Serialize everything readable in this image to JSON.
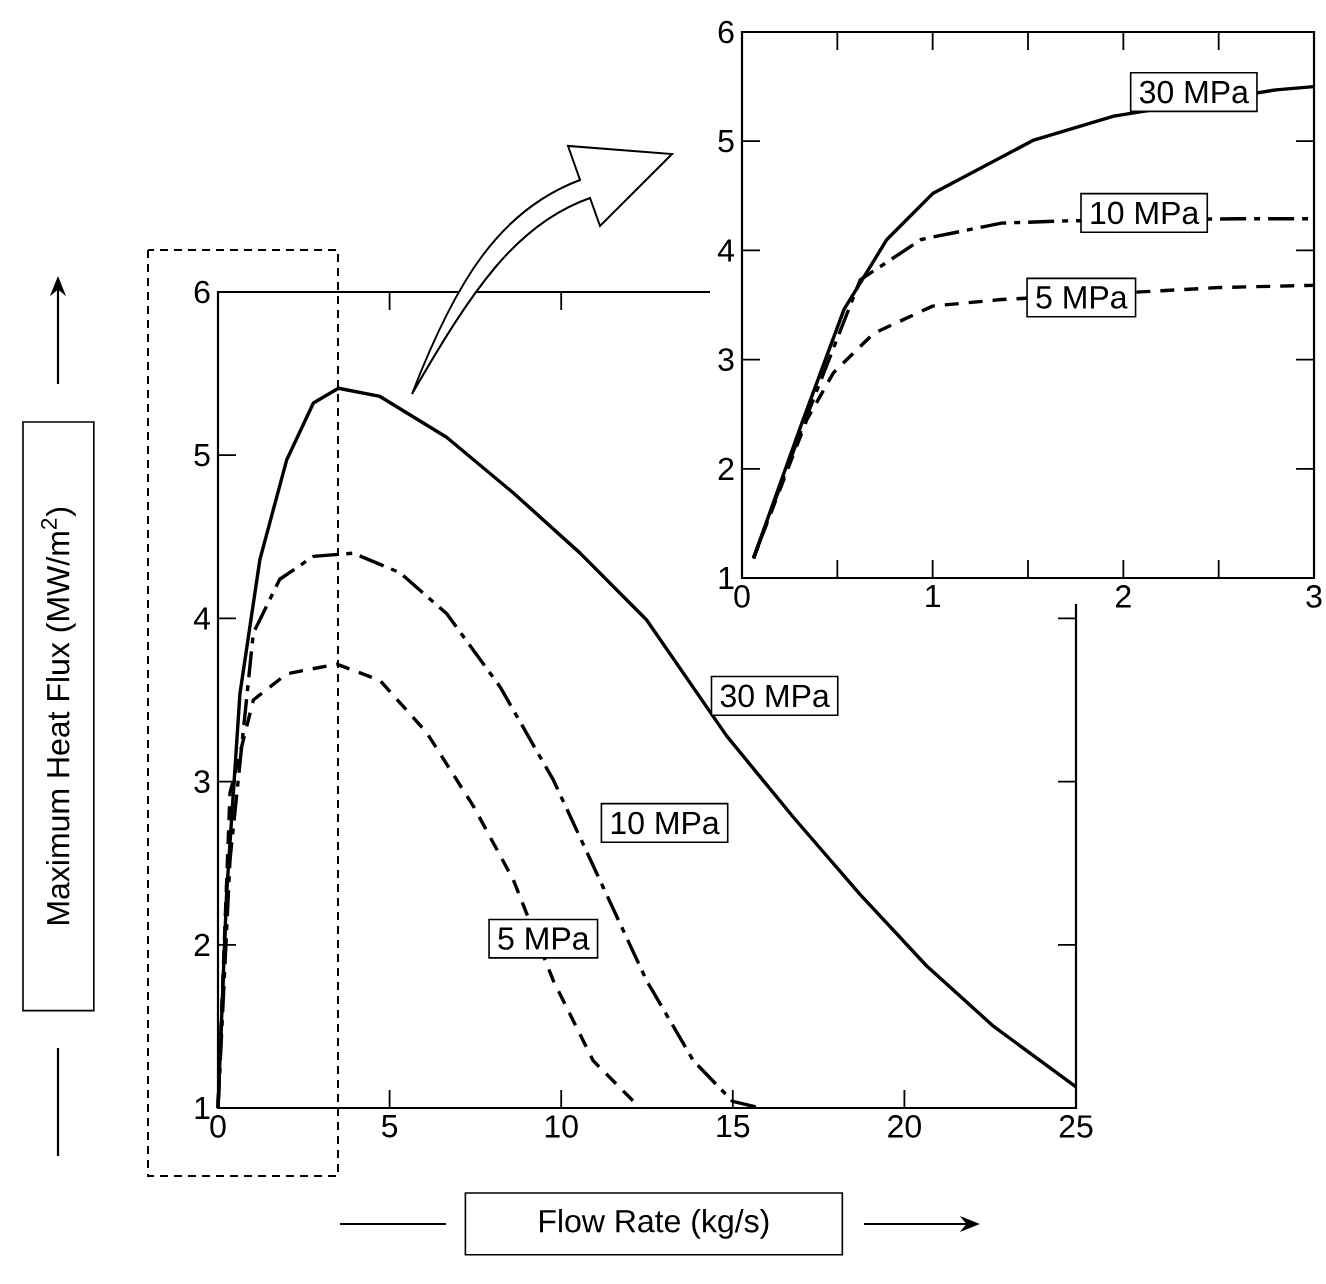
{
  "chart_data": [
    {
      "type": "line",
      "xlabel": "Flow Rate (kg/s)",
      "ylabel": "Maximum Heat Flux (MW/m$^{2}$)",
      "xlim": [
        0,
        25
      ],
      "ylim": [
        1,
        6
      ],
      "xticks": [
        0,
        5,
        10,
        15,
        20,
        25
      ],
      "yticks": [
        1,
        2,
        3,
        4,
        5,
        6
      ],
      "marker": "none",
      "series": [
        {
          "name": "30 MPa",
          "color": "#000000",
          "line_style": "solid",
          "x": [
            0,
            0.25,
            0.64,
            1.22,
            2.0,
            2.78,
            3.51,
            4.72,
            6.66,
            8.6,
            10.55,
            12.49,
            14.82,
            16.77,
            18.7,
            20.65,
            22.6,
            25.0
          ],
          "values": [
            1.0,
            2.31,
            3.54,
            4.36,
            4.97,
            5.32,
            5.41,
            5.36,
            5.11,
            4.77,
            4.4,
            3.99,
            3.28,
            2.78,
            2.31,
            1.87,
            1.5,
            1.13
          ]
        },
        {
          "name": "10 MPa",
          "color": "#000000",
          "line_style": "dashdot",
          "x": [
            0,
            0.35,
            1.03,
            1.8,
            2.78,
            3.94,
            5.3,
            6.66,
            8.22,
            9.77,
            11.03,
            12.49,
            13.85,
            15.0,
            15.8
          ],
          "values": [
            1.0,
            2.52,
            3.91,
            4.24,
            4.38,
            4.4,
            4.28,
            4.03,
            3.58,
            3.01,
            2.44,
            1.78,
            1.29,
            1.04,
            1.0
          ]
        },
        {
          "name": "5 MPa",
          "color": "#000000",
          "line_style": "dashed",
          "x": [
            0,
            0.35,
            1.03,
            2.0,
            3.46,
            4.72,
            6.08,
            7.44,
            8.6,
            9.77,
            10.93,
            12.3
          ],
          "values": [
            1.0,
            2.93,
            3.5,
            3.66,
            3.72,
            3.62,
            3.3,
            2.85,
            2.4,
            1.78,
            1.29,
            1.0
          ]
        }
      ]
    },
    {
      "type": "line",
      "xlim": [
        0,
        3
      ],
      "ylim": [
        1,
        6
      ],
      "xticks": [
        0,
        {
          "value": 0.5,
          "label": null
        },
        1,
        {
          "value": 1.5,
          "label": null
        },
        2,
        {
          "value": 2.5,
          "label": null
        },
        3
      ],
      "yticks": [
        1,
        2,
        3,
        4,
        5,
        6
      ],
      "marker": "none",
      "series": [
        {
          "name": "30 MPa",
          "color": "#000000",
          "line_style": "solid",
          "x": [
            0.06,
            0.31,
            0.535,
            0.76,
            1.0,
            1.53,
            1.95,
            2.8,
            3.0
          ],
          "values": [
            1.18,
            2.4,
            3.46,
            4.1,
            4.52,
            5.01,
            5.23,
            5.47,
            5.5
          ]
        },
        {
          "name": "10 MPa",
          "color": "#000000",
          "line_style": "dashdot",
          "x": [
            0.06,
            0.31,
            0.62,
            0.94,
            1.36,
            1.7,
            2.6,
            3.0
          ],
          "values": [
            1.18,
            2.35,
            3.73,
            4.1,
            4.25,
            4.27,
            4.29,
            4.29
          ]
        },
        {
          "name": "5 MPa",
          "color": "#000000",
          "line_style": "dashed",
          "x": [
            0.06,
            0.34,
            0.48,
            0.69,
            1.0,
            1.36,
            2.2,
            2.5,
            3.0
          ],
          "values": [
            1.18,
            2.45,
            2.88,
            3.24,
            3.49,
            3.55,
            3.63,
            3.66,
            3.68
          ]
        }
      ]
    }
  ]
}
